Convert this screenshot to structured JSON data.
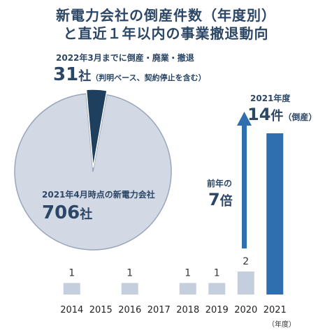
{
  "title_line1": "新電力会社の倒産件数（年度別）",
  "title_line2": "と直近１年以内の事業撤退動向",
  "pie": {
    "slice_caption": "2022年3月までに倒産・廃業・撤退",
    "slice_value": "31",
    "slice_unit": "社",
    "slice_note": "（判明ベース、契約停止を含む）",
    "total_caption": "2021年4月時点の新電力会社",
    "total_value": "706",
    "total_unit": "社"
  },
  "callout": {
    "year_label": "2021年度",
    "count_value": "14",
    "count_unit": "件",
    "count_note": "（倒産）",
    "growth_caption": "前年の",
    "growth_value": "7",
    "growth_unit": "倍"
  },
  "xaxis_unit": "（年度）",
  "chart_data": [
    {
      "type": "pie",
      "slices": [
        {
          "label": "2022年3月までに倒産・廃業・撤退",
          "value": 31
        },
        {
          "label": "2021年4月時点の新電力会社",
          "value": 706
        }
      ],
      "colors": [
        "#1f3f5f",
        "#d2d8e4"
      ]
    },
    {
      "type": "bar",
      "categories": [
        "2014",
        "2015",
        "2016",
        "2017",
        "2018",
        "2019",
        "2020",
        "2021"
      ],
      "values": [
        1,
        0,
        1,
        0,
        1,
        1,
        2,
        14
      ],
      "data_labels": [
        "1",
        "",
        "1",
        "",
        "1",
        "1",
        "2",
        ""
      ],
      "colors": {
        "normal": "#c5cedd",
        "highlight": "#2f6fb0"
      }
    }
  ]
}
